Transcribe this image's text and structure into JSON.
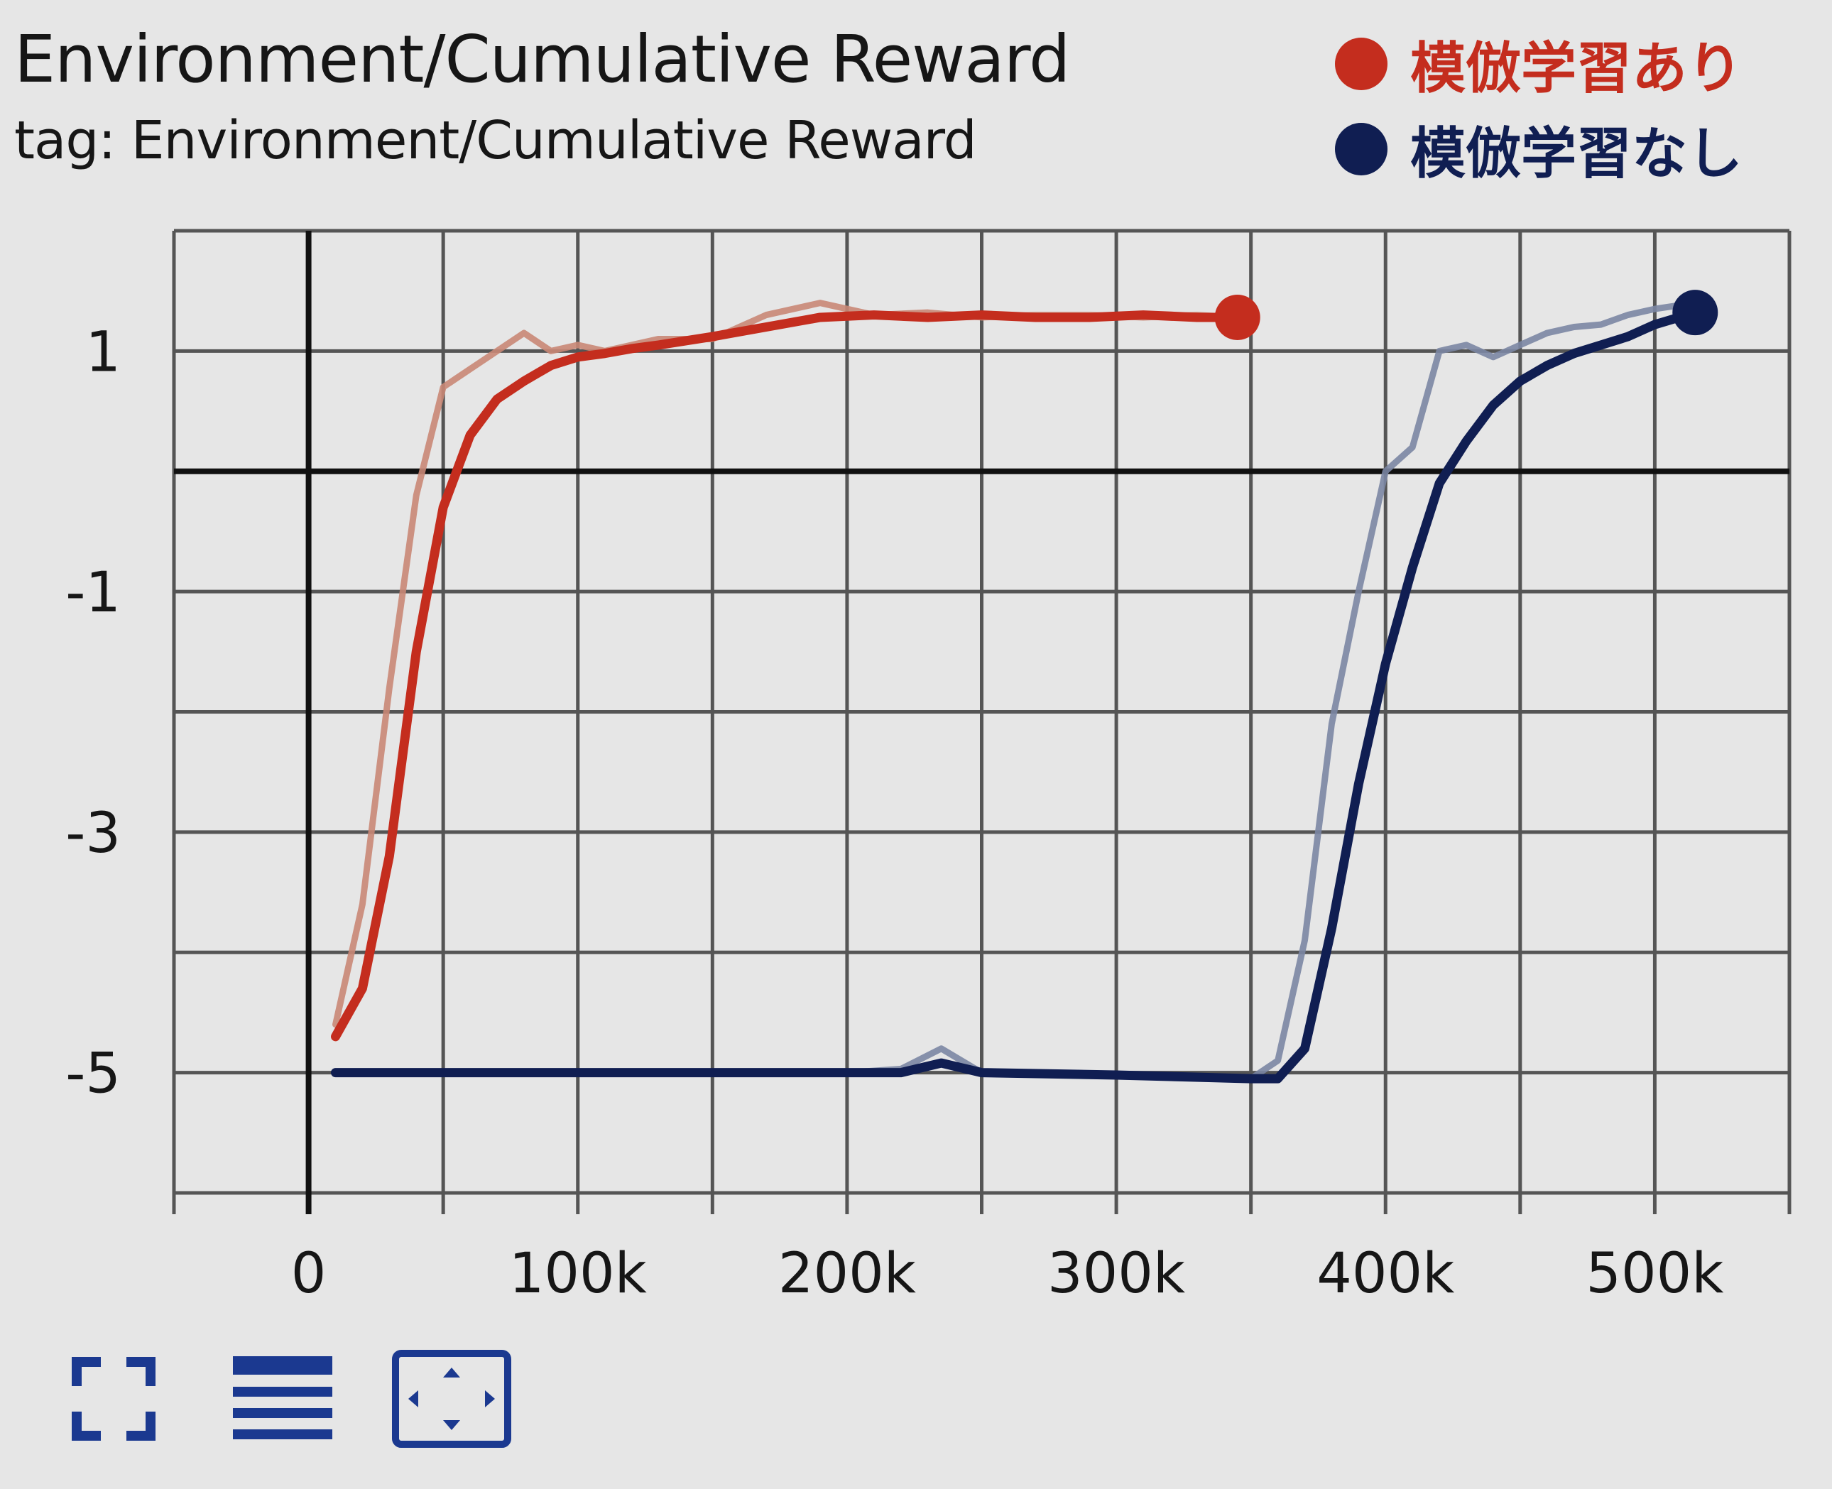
{
  "chart_data": {
    "type": "line",
    "title": "Environment/Cumulative Reward",
    "subtitle": "tag: Environment/Cumulative Reward",
    "xlabel": "",
    "ylabel": "",
    "x_ticks": [
      "0",
      "100k",
      "200k",
      "300k",
      "400k",
      "500k"
    ],
    "y_ticks": [
      "1",
      "-1",
      "-3",
      "-5"
    ],
    "xlim": [
      -50000,
      550000
    ],
    "ylim": [
      -6,
      2
    ],
    "grid": true,
    "legend_position": "top-right",
    "series": [
      {
        "name": "模倣学習あり",
        "color": "#c42d1e",
        "raw_color": "#c98775",
        "x": [
          10000,
          20000,
          30000,
          40000,
          50000,
          60000,
          70000,
          80000,
          90000,
          100000,
          110000,
          120000,
          130000,
          150000,
          170000,
          190000,
          210000,
          230000,
          250000,
          270000,
          290000,
          310000,
          330000,
          345000
        ],
        "y": [
          -4.7,
          -4.3,
          -3.2,
          -1.5,
          -0.3,
          0.3,
          0.6,
          0.75,
          0.88,
          0.95,
          0.98,
          1.02,
          1.05,
          1.12,
          1.2,
          1.28,
          1.3,
          1.28,
          1.3,
          1.28,
          1.28,
          1.3,
          1.28,
          1.28
        ],
        "raw_y": [
          -4.6,
          -3.6,
          -1.8,
          -0.2,
          0.7,
          0.85,
          1.0,
          1.15,
          1.0,
          1.05,
          1.0,
          1.05,
          1.1,
          1.1,
          1.3,
          1.4,
          1.3,
          1.32,
          1.28,
          1.3,
          1.3,
          1.28,
          1.3,
          1.28
        ]
      },
      {
        "name": "模倣学習なし",
        "color": "#101e52",
        "raw_color": "#7b86a3",
        "x": [
          10000,
          50000,
          100000,
          150000,
          200000,
          220000,
          235000,
          250000,
          300000,
          350000,
          360000,
          370000,
          380000,
          390000,
          400000,
          410000,
          420000,
          430000,
          440000,
          450000,
          460000,
          470000,
          480000,
          490000,
          500000,
          515000
        ],
        "y": [
          -5.0,
          -5.0,
          -5.0,
          -5.0,
          -5.0,
          -5.0,
          -4.92,
          -5.0,
          -5.02,
          -5.05,
          -5.05,
          -4.8,
          -3.8,
          -2.6,
          -1.6,
          -0.8,
          -0.1,
          0.25,
          0.55,
          0.75,
          0.88,
          0.98,
          1.05,
          1.12,
          1.22,
          1.32
        ],
        "raw_y": [
          -5.0,
          -5.0,
          -5.0,
          -5.0,
          -5.0,
          -4.97,
          -4.8,
          -5.0,
          -5.02,
          -5.05,
          -4.9,
          -3.9,
          -2.1,
          -1.0,
          0.0,
          0.2,
          1.0,
          1.05,
          0.95,
          1.05,
          1.15,
          1.2,
          1.22,
          1.3,
          1.35,
          1.4
        ]
      }
    ]
  },
  "toolbar": {
    "fullscreen_icon": "fullscreen-icon",
    "data_table_icon": "data-table-icon",
    "fit_domain_icon": "fit-domain-icon"
  }
}
